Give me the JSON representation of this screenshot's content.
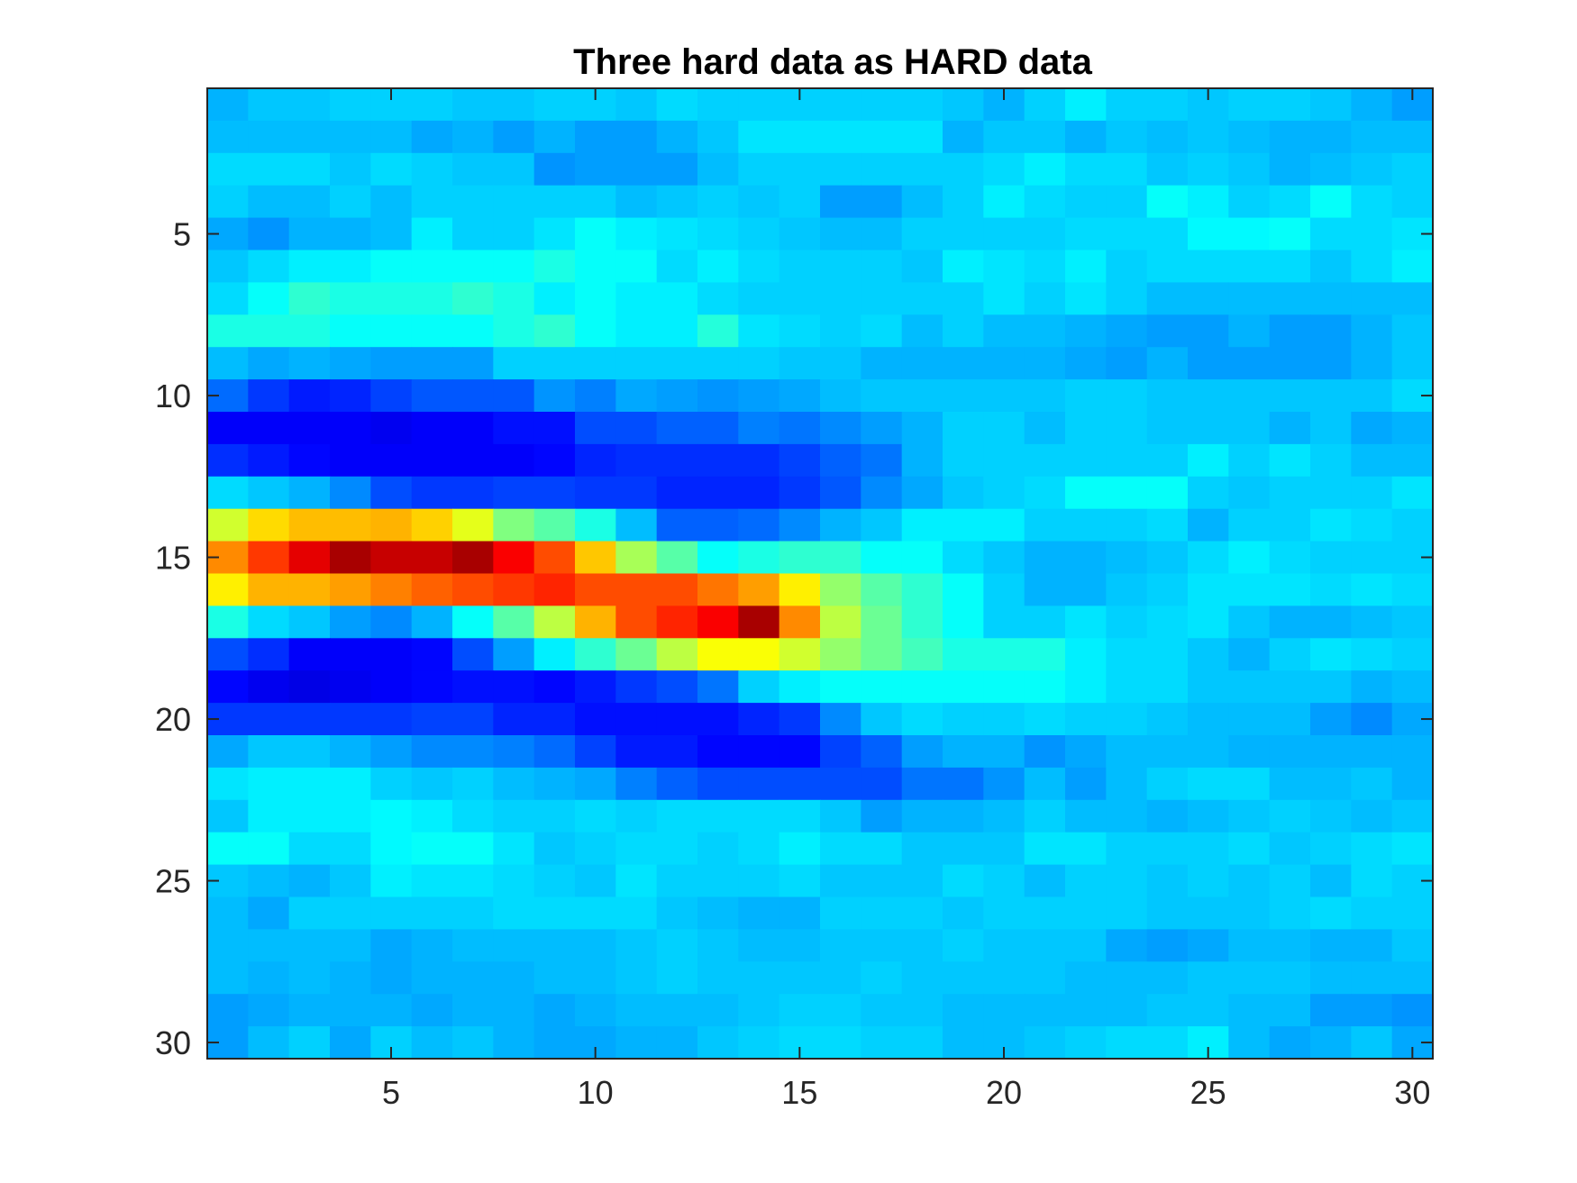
{
  "chart_data": {
    "type": "heatmap",
    "title": "Three hard data as HARD data",
    "xlabel": "",
    "ylabel": "",
    "xlim": [
      0.5,
      30.5
    ],
    "ylim": [
      0.5,
      30.5
    ],
    "y_axis_direction": "reversed",
    "grid": false,
    "colormap": "jet",
    "x_ticks": [
      5,
      10,
      15,
      20,
      25,
      30
    ],
    "y_ticks": [
      5,
      10,
      15,
      20,
      25,
      30
    ],
    "x_tick_labels": [
      "5",
      "10",
      "15",
      "20",
      "25",
      "30"
    ],
    "y_tick_labels": [
      "5",
      "10",
      "15",
      "20",
      "25",
      "30"
    ],
    "value_range": [
      0,
      1
    ],
    "values": [
      [
        0.3,
        0.32,
        0.32,
        0.33,
        0.33,
        0.33,
        0.32,
        0.32,
        0.33,
        0.33,
        0.32,
        0.34,
        0.33,
        0.33,
        0.33,
        0.33,
        0.33,
        0.33,
        0.32,
        0.3,
        0.33,
        0.36,
        0.33,
        0.33,
        0.32,
        0.33,
        0.33,
        0.32,
        0.3,
        0.28
      ],
      [
        0.31,
        0.31,
        0.31,
        0.31,
        0.31,
        0.29,
        0.3,
        0.28,
        0.3,
        0.28,
        0.28,
        0.3,
        0.32,
        0.35,
        0.35,
        0.35,
        0.35,
        0.35,
        0.3,
        0.32,
        0.32,
        0.3,
        0.32,
        0.31,
        0.32,
        0.31,
        0.3,
        0.3,
        0.31,
        0.31
      ],
      [
        0.34,
        0.34,
        0.34,
        0.32,
        0.34,
        0.33,
        0.32,
        0.32,
        0.27,
        0.28,
        0.28,
        0.28,
        0.31,
        0.33,
        0.33,
        0.33,
        0.33,
        0.33,
        0.33,
        0.34,
        0.36,
        0.34,
        0.34,
        0.32,
        0.33,
        0.32,
        0.3,
        0.31,
        0.32,
        0.33
      ],
      [
        0.33,
        0.31,
        0.31,
        0.33,
        0.31,
        0.33,
        0.33,
        0.33,
        0.33,
        0.33,
        0.31,
        0.32,
        0.33,
        0.32,
        0.33,
        0.28,
        0.28,
        0.31,
        0.33,
        0.36,
        0.34,
        0.33,
        0.33,
        0.38,
        0.36,
        0.33,
        0.34,
        0.38,
        0.34,
        0.33
      ],
      [
        0.29,
        0.27,
        0.3,
        0.3,
        0.31,
        0.36,
        0.33,
        0.33,
        0.35,
        0.38,
        0.36,
        0.35,
        0.34,
        0.33,
        0.32,
        0.31,
        0.31,
        0.33,
        0.33,
        0.33,
        0.33,
        0.34,
        0.34,
        0.34,
        0.37,
        0.37,
        0.38,
        0.34,
        0.34,
        0.35
      ],
      [
        0.32,
        0.34,
        0.36,
        0.36,
        0.38,
        0.38,
        0.38,
        0.38,
        0.4,
        0.38,
        0.38,
        0.34,
        0.36,
        0.34,
        0.33,
        0.33,
        0.33,
        0.32,
        0.36,
        0.35,
        0.34,
        0.36,
        0.33,
        0.34,
        0.34,
        0.34,
        0.34,
        0.32,
        0.34,
        0.36
      ],
      [
        0.34,
        0.38,
        0.42,
        0.4,
        0.4,
        0.4,
        0.42,
        0.4,
        0.36,
        0.38,
        0.36,
        0.36,
        0.34,
        0.33,
        0.33,
        0.33,
        0.33,
        0.33,
        0.33,
        0.35,
        0.33,
        0.35,
        0.33,
        0.31,
        0.31,
        0.31,
        0.31,
        0.31,
        0.31,
        0.31
      ],
      [
        0.4,
        0.4,
        0.4,
        0.38,
        0.38,
        0.38,
        0.38,
        0.4,
        0.42,
        0.38,
        0.36,
        0.36,
        0.41,
        0.35,
        0.34,
        0.33,
        0.34,
        0.31,
        0.33,
        0.31,
        0.31,
        0.3,
        0.29,
        0.28,
        0.28,
        0.3,
        0.28,
        0.28,
        0.3,
        0.32
      ],
      [
        0.31,
        0.29,
        0.3,
        0.29,
        0.28,
        0.28,
        0.28,
        0.33,
        0.33,
        0.33,
        0.33,
        0.33,
        0.33,
        0.33,
        0.32,
        0.32,
        0.3,
        0.3,
        0.3,
        0.3,
        0.3,
        0.29,
        0.28,
        0.3,
        0.28,
        0.28,
        0.28,
        0.28,
        0.3,
        0.32
      ],
      [
        0.23,
        0.18,
        0.15,
        0.16,
        0.19,
        0.21,
        0.21,
        0.21,
        0.27,
        0.25,
        0.29,
        0.28,
        0.27,
        0.28,
        0.29,
        0.31,
        0.32,
        0.32,
        0.32,
        0.32,
        0.32,
        0.33,
        0.33,
        0.32,
        0.32,
        0.32,
        0.32,
        0.32,
        0.32,
        0.34
      ],
      [
        0.12,
        0.12,
        0.12,
        0.12,
        0.11,
        0.12,
        0.12,
        0.14,
        0.14,
        0.2,
        0.2,
        0.22,
        0.22,
        0.25,
        0.24,
        0.26,
        0.28,
        0.3,
        0.33,
        0.33,
        0.31,
        0.33,
        0.33,
        0.32,
        0.32,
        0.32,
        0.3,
        0.32,
        0.29,
        0.3
      ],
      [
        0.17,
        0.15,
        0.13,
        0.12,
        0.12,
        0.12,
        0.12,
        0.12,
        0.13,
        0.16,
        0.17,
        0.17,
        0.17,
        0.17,
        0.19,
        0.22,
        0.24,
        0.3,
        0.33,
        0.33,
        0.33,
        0.33,
        0.33,
        0.33,
        0.36,
        0.33,
        0.35,
        0.33,
        0.31,
        0.31
      ],
      [
        0.34,
        0.32,
        0.3,
        0.26,
        0.2,
        0.18,
        0.18,
        0.19,
        0.19,
        0.18,
        0.18,
        0.16,
        0.16,
        0.16,
        0.18,
        0.21,
        0.26,
        0.29,
        0.32,
        0.33,
        0.34,
        0.38,
        0.38,
        0.38,
        0.33,
        0.32,
        0.33,
        0.33,
        0.33,
        0.35
      ],
      [
        0.58,
        0.66,
        0.69,
        0.69,
        0.7,
        0.67,
        0.6,
        0.5,
        0.46,
        0.4,
        0.31,
        0.22,
        0.22,
        0.23,
        0.26,
        0.3,
        0.32,
        0.36,
        0.36,
        0.36,
        0.33,
        0.33,
        0.33,
        0.34,
        0.3,
        0.33,
        0.33,
        0.35,
        0.34,
        0.33
      ],
      [
        0.74,
        0.82,
        0.9,
        0.96,
        0.93,
        0.93,
        0.96,
        0.88,
        0.8,
        0.68,
        0.54,
        0.46,
        0.38,
        0.4,
        0.42,
        0.42,
        0.38,
        0.38,
        0.34,
        0.32,
        0.3,
        0.3,
        0.31,
        0.32,
        0.34,
        0.36,
        0.34,
        0.33,
        0.33,
        0.33
      ],
      [
        0.64,
        0.7,
        0.7,
        0.72,
        0.75,
        0.78,
        0.8,
        0.82,
        0.84,
        0.8,
        0.8,
        0.8,
        0.76,
        0.72,
        0.64,
        0.52,
        0.46,
        0.42,
        0.38,
        0.33,
        0.3,
        0.3,
        0.32,
        0.33,
        0.35,
        0.35,
        0.35,
        0.34,
        0.35,
        0.34
      ],
      [
        0.4,
        0.34,
        0.32,
        0.28,
        0.26,
        0.3,
        0.38,
        0.46,
        0.56,
        0.7,
        0.8,
        0.84,
        0.88,
        0.96,
        0.74,
        0.56,
        0.48,
        0.42,
        0.38,
        0.33,
        0.33,
        0.35,
        0.33,
        0.34,
        0.35,
        0.32,
        0.3,
        0.3,
        0.31,
        0.32
      ],
      [
        0.2,
        0.17,
        0.12,
        0.12,
        0.12,
        0.13,
        0.2,
        0.28,
        0.36,
        0.42,
        0.48,
        0.56,
        0.62,
        0.62,
        0.58,
        0.52,
        0.48,
        0.44,
        0.4,
        0.4,
        0.4,
        0.36,
        0.34,
        0.34,
        0.32,
        0.3,
        0.33,
        0.35,
        0.34,
        0.33
      ],
      [
        0.13,
        0.11,
        0.1,
        0.11,
        0.12,
        0.13,
        0.14,
        0.14,
        0.13,
        0.15,
        0.18,
        0.2,
        0.24,
        0.33,
        0.36,
        0.38,
        0.38,
        0.38,
        0.38,
        0.38,
        0.38,
        0.36,
        0.34,
        0.34,
        0.32,
        0.32,
        0.32,
        0.32,
        0.3,
        0.31
      ],
      [
        0.18,
        0.18,
        0.18,
        0.18,
        0.18,
        0.19,
        0.19,
        0.16,
        0.16,
        0.14,
        0.14,
        0.14,
        0.14,
        0.16,
        0.18,
        0.26,
        0.32,
        0.34,
        0.33,
        0.33,
        0.34,
        0.33,
        0.33,
        0.32,
        0.31,
        0.31,
        0.31,
        0.28,
        0.26,
        0.29
      ],
      [
        0.29,
        0.32,
        0.32,
        0.3,
        0.28,
        0.26,
        0.26,
        0.25,
        0.23,
        0.19,
        0.15,
        0.15,
        0.13,
        0.13,
        0.13,
        0.19,
        0.22,
        0.28,
        0.3,
        0.3,
        0.27,
        0.29,
        0.31,
        0.31,
        0.31,
        0.3,
        0.3,
        0.3,
        0.3,
        0.3
      ],
      [
        0.35,
        0.36,
        0.36,
        0.36,
        0.33,
        0.32,
        0.33,
        0.31,
        0.3,
        0.29,
        0.25,
        0.22,
        0.2,
        0.2,
        0.2,
        0.2,
        0.2,
        0.24,
        0.24,
        0.27,
        0.31,
        0.28,
        0.31,
        0.33,
        0.34,
        0.34,
        0.31,
        0.31,
        0.32,
        0.3
      ],
      [
        0.32,
        0.36,
        0.36,
        0.36,
        0.37,
        0.36,
        0.34,
        0.33,
        0.33,
        0.34,
        0.33,
        0.34,
        0.34,
        0.34,
        0.34,
        0.32,
        0.28,
        0.3,
        0.3,
        0.31,
        0.33,
        0.31,
        0.31,
        0.3,
        0.31,
        0.32,
        0.33,
        0.32,
        0.31,
        0.32
      ],
      [
        0.38,
        0.38,
        0.34,
        0.34,
        0.37,
        0.38,
        0.38,
        0.35,
        0.32,
        0.33,
        0.34,
        0.34,
        0.33,
        0.34,
        0.36,
        0.34,
        0.34,
        0.32,
        0.32,
        0.32,
        0.35,
        0.35,
        0.33,
        0.33,
        0.33,
        0.34,
        0.32,
        0.33,
        0.34,
        0.35
      ],
      [
        0.32,
        0.31,
        0.3,
        0.32,
        0.36,
        0.35,
        0.35,
        0.34,
        0.33,
        0.32,
        0.35,
        0.33,
        0.33,
        0.33,
        0.34,
        0.32,
        0.32,
        0.32,
        0.34,
        0.33,
        0.31,
        0.33,
        0.33,
        0.32,
        0.33,
        0.32,
        0.33,
        0.31,
        0.34,
        0.33
      ],
      [
        0.31,
        0.29,
        0.33,
        0.33,
        0.33,
        0.33,
        0.33,
        0.34,
        0.34,
        0.34,
        0.34,
        0.32,
        0.31,
        0.3,
        0.3,
        0.33,
        0.33,
        0.33,
        0.32,
        0.33,
        0.33,
        0.33,
        0.33,
        0.32,
        0.32,
        0.32,
        0.33,
        0.34,
        0.33,
        0.33
      ],
      [
        0.31,
        0.31,
        0.31,
        0.31,
        0.29,
        0.3,
        0.31,
        0.31,
        0.31,
        0.31,
        0.32,
        0.33,
        0.32,
        0.31,
        0.31,
        0.32,
        0.32,
        0.32,
        0.33,
        0.32,
        0.32,
        0.32,
        0.29,
        0.28,
        0.29,
        0.31,
        0.31,
        0.3,
        0.3,
        0.32
      ],
      [
        0.31,
        0.3,
        0.31,
        0.3,
        0.29,
        0.3,
        0.3,
        0.3,
        0.31,
        0.31,
        0.32,
        0.33,
        0.32,
        0.32,
        0.32,
        0.32,
        0.33,
        0.32,
        0.32,
        0.32,
        0.32,
        0.31,
        0.31,
        0.31,
        0.32,
        0.32,
        0.32,
        0.31,
        0.31,
        0.31
      ],
      [
        0.28,
        0.29,
        0.3,
        0.3,
        0.3,
        0.29,
        0.3,
        0.3,
        0.29,
        0.3,
        0.31,
        0.31,
        0.31,
        0.32,
        0.33,
        0.33,
        0.32,
        0.32,
        0.31,
        0.31,
        0.31,
        0.31,
        0.31,
        0.32,
        0.32,
        0.31,
        0.31,
        0.28,
        0.28,
        0.27
      ],
      [
        0.28,
        0.31,
        0.33,
        0.29,
        0.33,
        0.31,
        0.32,
        0.3,
        0.29,
        0.29,
        0.3,
        0.3,
        0.32,
        0.33,
        0.34,
        0.34,
        0.33,
        0.33,
        0.31,
        0.31,
        0.32,
        0.33,
        0.34,
        0.34,
        0.36,
        0.31,
        0.29,
        0.3,
        0.32,
        0.29
      ]
    ]
  }
}
